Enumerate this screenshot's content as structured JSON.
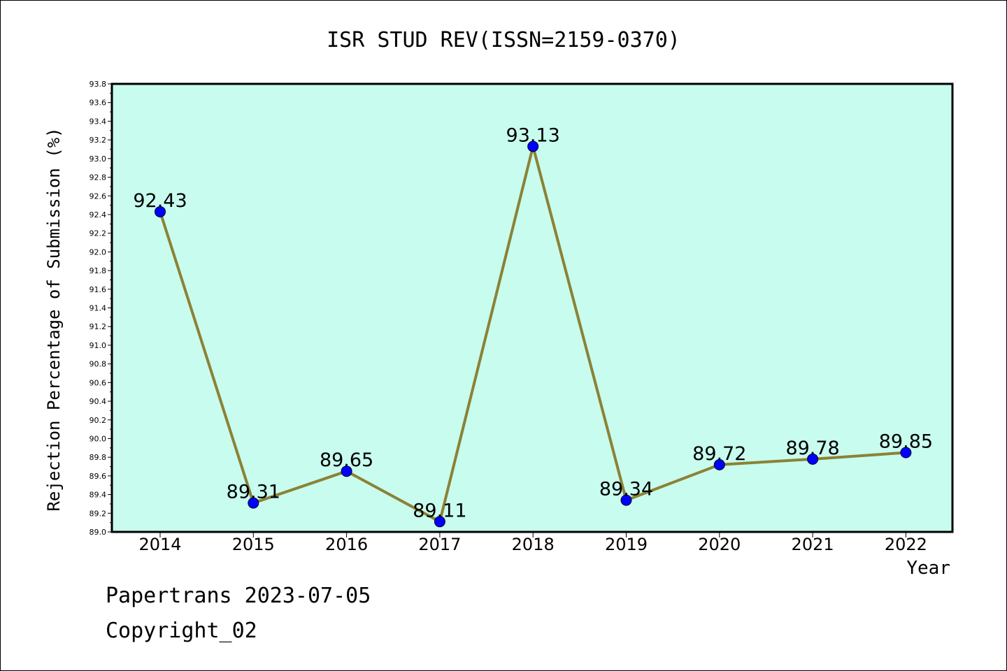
{
  "chart_data": {
    "type": "line",
    "title": "ISR STUD REV(ISSN=2159-0370)",
    "xlabel": "Year",
    "ylabel": "Rejection Percentage of Submission (%)",
    "categories": [
      "2014",
      "2015",
      "2016",
      "2017",
      "2018",
      "2019",
      "2020",
      "2021",
      "2022"
    ],
    "values": [
      92.43,
      89.31,
      89.65,
      89.11,
      93.13,
      89.34,
      89.72,
      89.78,
      89.85
    ],
    "data_labels": [
      "92.43",
      "89.31",
      "89.65",
      "89.11",
      "93.13",
      "89.34",
      "89.72",
      "89.78",
      "89.85"
    ],
    "ylim": [
      89.0,
      93.8
    ],
    "yticks": [
      "89.0",
      "89.2",
      "89.4",
      "89.6",
      "89.8",
      "90.0",
      "90.2",
      "90.4",
      "90.6",
      "90.8",
      "91.0",
      "91.2",
      "91.4",
      "91.6",
      "91.8",
      "92.0",
      "92.2",
      "92.4",
      "92.6",
      "92.8",
      "93.0",
      "93.2",
      "93.4",
      "93.6",
      "93.8"
    ],
    "grid": false,
    "legend": "none",
    "colors": {
      "plot_background": "#c8fcee",
      "line": "#8b8236",
      "marker": "#0000ff"
    }
  },
  "footer": {
    "line1": "Papertrans 2023-07-05",
    "line2": "Copyright_02"
  }
}
